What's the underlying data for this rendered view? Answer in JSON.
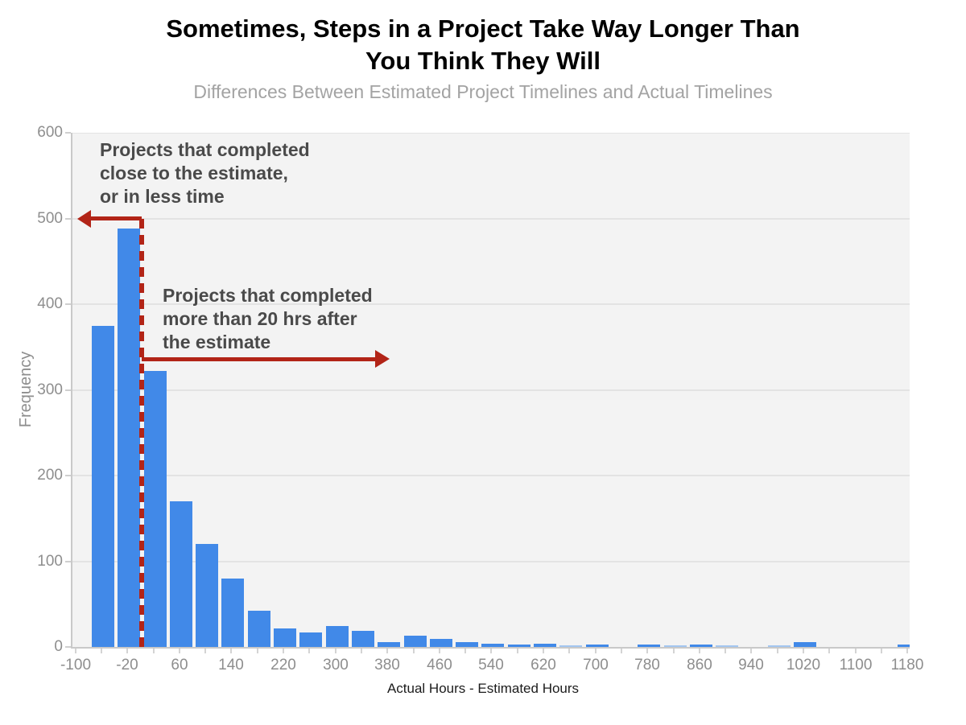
{
  "title": {
    "line1": "Sometimes, Steps in a Project Take Way Longer Than",
    "line2": "You Think They Will"
  },
  "subtitle": "Differences Between Estimated Project Timelines and Actual Timelines",
  "annotations": {
    "left": {
      "lines": [
        "Projects that completed",
        "close to the estimate,",
        "or in less time"
      ],
      "arrow_at_frequency": 500,
      "arrow_direction": "left"
    },
    "right": {
      "lines": [
        "Projects that completed",
        "more than 20 hrs after",
        "the estimate"
      ],
      "arrow_at_frequency": 336,
      "arrow_direction": "right"
    }
  },
  "chart_data": {
    "type": "bar",
    "title": "Sometimes, Steps in a Project Take Way Longer Than You Think They Will",
    "subtitle": "Differences Between Estimated Project Timelines and Actual Timelines",
    "xlabel": "Actual Hours - Estimated Hours",
    "ylabel": "Frequency",
    "xlim": [
      -107,
      1181
    ],
    "ylim": [
      0,
      600
    ],
    "y_ticks": [
      0,
      100,
      200,
      300,
      400,
      500,
      600
    ],
    "x_tick_labels": [
      -100,
      -20,
      60,
      140,
      220,
      300,
      380,
      460,
      540,
      620,
      700,
      780,
      860,
      940,
      1020,
      1100,
      1180
    ],
    "x_minor_tick_start": -100,
    "x_minor_tick_step": 40,
    "x_minor_tick_end": 1180,
    "grid": "horizontal",
    "legend": "none",
    "bin_width": 40,
    "bin_centers": [
      -60,
      -20,
      20,
      60,
      100,
      140,
      180,
      220,
      260,
      300,
      340,
      380,
      420,
      460,
      500,
      540,
      580,
      620,
      660,
      700,
      740,
      780,
      820,
      860,
      900,
      940,
      980,
      1020,
      1060,
      1100,
      1140,
      1180
    ],
    "values": [
      375,
      488,
      322,
      170,
      120,
      80,
      42,
      22,
      17,
      24,
      19,
      6,
      13,
      9,
      6,
      4,
      3,
      4,
      2,
      3,
      0,
      3,
      2,
      3,
      1.5,
      0,
      1.5,
      6,
      0,
      0,
      0,
      3
    ],
    "dashed_line_x": 0,
    "colors": {
      "bar": "#4189e8",
      "bar_light": "#a3c6f0",
      "annotation_red": "#b22417",
      "plot_background": "#f3f3f3",
      "gridline": "#e3e3e3",
      "axis_line": "#c9c9c9",
      "tick_text": "#8e8e8e",
      "subtitle_text": "#a3a3a3",
      "annotation_text": "#4a4a4a"
    }
  }
}
